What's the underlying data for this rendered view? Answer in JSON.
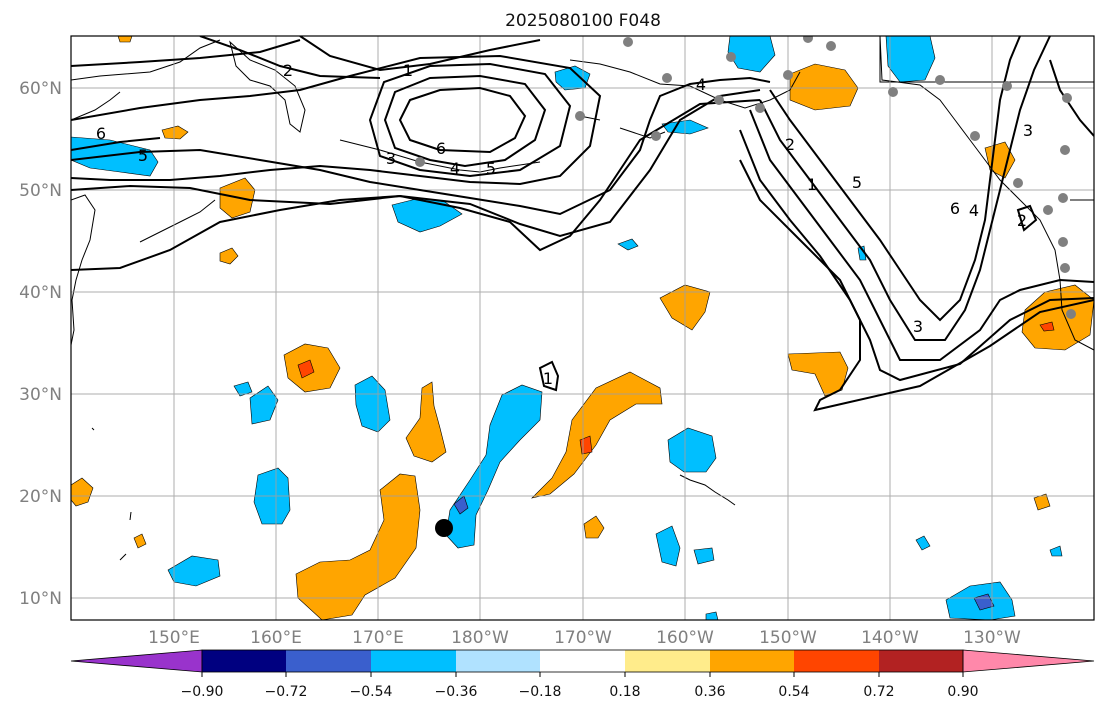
{
  "title": "2025080100 F048",
  "map": {
    "lat_labels": [
      "10°N",
      "20°N",
      "30°N",
      "40°N",
      "50°N",
      "60°N"
    ],
    "lon_labels": [
      "150°E",
      "160°E",
      "170°E",
      "180°W",
      "170°W",
      "160°W",
      "150°W",
      "140°W",
      "130°W"
    ]
  },
  "contour_labels": [
    "6",
    "5",
    "4",
    "3",
    "2",
    "1",
    "6",
    "5",
    "4",
    "3",
    "2",
    "1",
    "1",
    "3",
    "4",
    "5",
    "6",
    "2"
  ],
  "colorbar": {
    "ticks": [
      "−0.90",
      "−0.72",
      "−0.54",
      "−0.36",
      "−0.18",
      "0.18",
      "0.36",
      "0.54",
      "0.72",
      "0.90"
    ],
    "colors": [
      "#9933cc",
      "#000080",
      "#3a5fcd",
      "#00bfff",
      "#b0e2ff",
      "#ffffff",
      "#ffec8b",
      "#ffa500",
      "#ff4500",
      "#b22222",
      "#ff88aa"
    ]
  },
  "legend_colors": {
    "land_outline": "#000000",
    "grid": "#a0a0a0",
    "station_marker": "#808080",
    "storm_marker": "#000000"
  }
}
